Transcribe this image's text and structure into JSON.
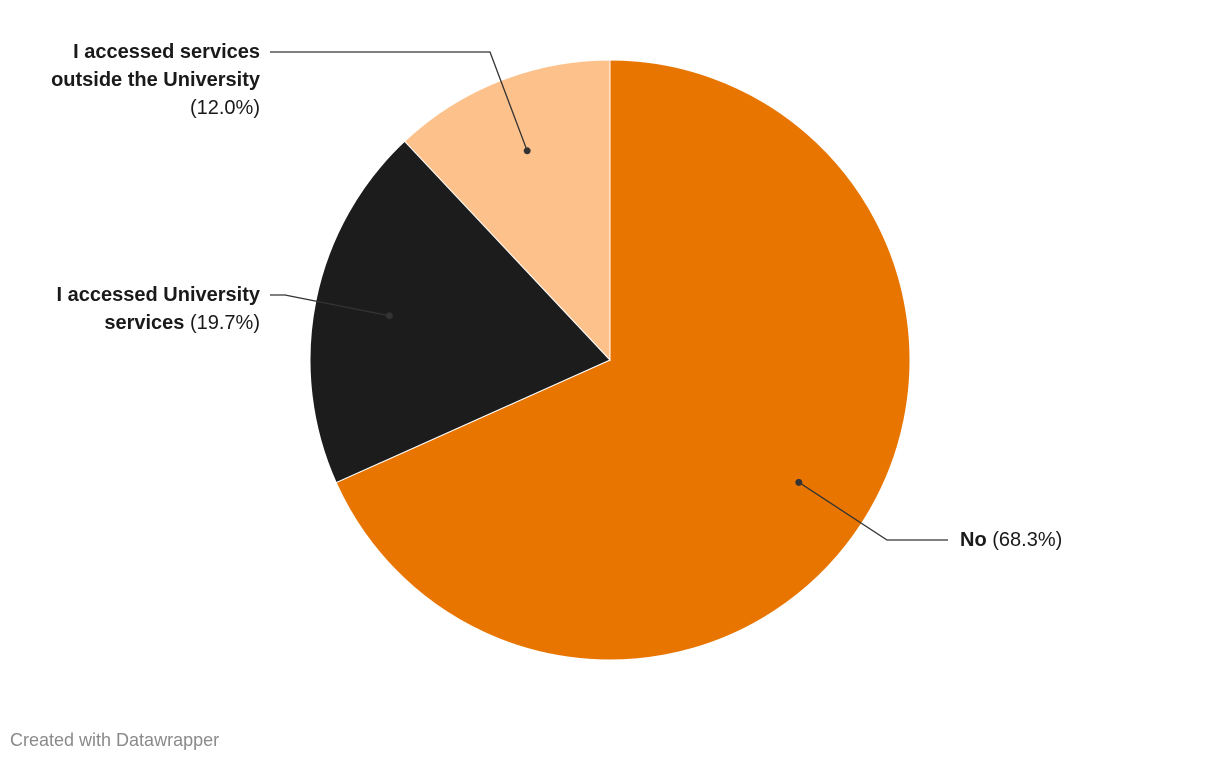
{
  "chart_data": {
    "type": "pie",
    "categories": [
      "No",
      "I accessed University services",
      "I accessed services outside the University"
    ],
    "values": [
      68.3,
      19.7,
      12.0
    ],
    "value_labels": [
      "(68.3%)",
      "(19.7%)",
      "(12.0%)"
    ],
    "colors": [
      "#e87500",
      "#1c1c1c",
      "#fdc28c"
    ],
    "credit": "Created with Datawrapper"
  }
}
